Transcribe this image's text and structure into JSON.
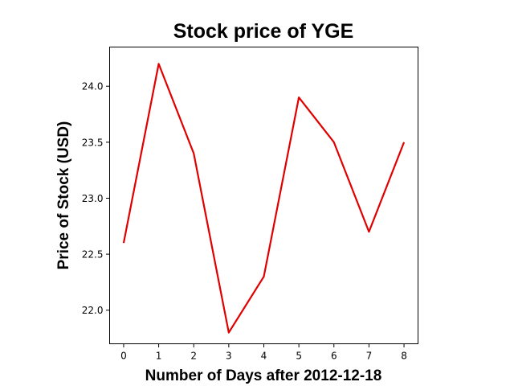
{
  "chart_data": {
    "type": "line",
    "title": "Stock price of YGE",
    "xlabel": "Number of Days after 2012-12-18",
    "ylabel": "Price of Stock (USD)",
    "x": [
      0,
      1,
      2,
      3,
      4,
      5,
      6,
      7,
      8
    ],
    "xticks": [
      "0",
      "1",
      "2",
      "3",
      "4",
      "5",
      "6",
      "7",
      "8"
    ],
    "yticks": [
      "22.0",
      "22.5",
      "23.0",
      "23.5",
      "24.0"
    ],
    "ytick_values": [
      22.0,
      22.5,
      23.0,
      23.5,
      24.0
    ],
    "xlim": [
      -0.4,
      8.4
    ],
    "ylim": [
      21.7,
      24.35
    ],
    "grid": false,
    "series": [
      {
        "values": [
          22.6,
          24.2,
          23.4,
          21.8,
          22.3,
          23.9,
          23.5,
          22.7,
          23.5
        ],
        "color": "#e00000"
      }
    ]
  }
}
